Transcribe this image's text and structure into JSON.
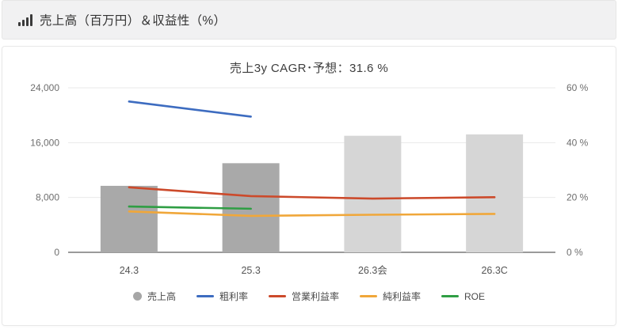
{
  "header": {
    "title": "売上高（百万円）＆収益性（%）",
    "icon": "bar-chart-icon"
  },
  "chart_data": {
    "type": "bar+line combo",
    "title": "売上3y CAGR･予想：31.6 %",
    "categories": [
      "24.3",
      "25.3",
      "26.3会",
      "26.3C"
    ],
    "bar_series": {
      "name": "売上高",
      "values": [
        9700,
        13000,
        17000,
        17200
      ],
      "colors": [
        "#a9a9a9",
        "#a9a9a9",
        "#d6d6d6",
        "#d6d6d6"
      ],
      "legend_marker_color": "#a6a6a6"
    },
    "line_series": [
      {
        "name": "粗利率",
        "color": "#3d6cc0",
        "values": [
          55.0,
          49.5,
          null,
          null
        ]
      },
      {
        "name": "営業利益率",
        "color": "#cc4a2b",
        "values": [
          23.7,
          20.5,
          19.6,
          20.1
        ]
      },
      {
        "name": "純利益率",
        "color": "#f0a73a",
        "values": [
          14.9,
          13.3,
          13.7,
          14.0
        ]
      },
      {
        "name": "ROE",
        "color": "#2f9e44",
        "values": [
          16.7,
          15.9,
          null,
          null
        ]
      }
    ],
    "left_axis": {
      "ticks": [
        "24,000",
        "16,000",
        "8,000",
        "0"
      ],
      "max": 24000,
      "min": 0
    },
    "right_axis": {
      "ticks": [
        "60 %",
        "40 %",
        "20 %",
        "0 %"
      ],
      "max": 60,
      "min": 0
    },
    "grid": true,
    "legend_position": "bottom",
    "colors": {
      "gridline": "#e9e9e9",
      "zero_axis": "#8c8c8c",
      "tick_label": "#6e6e6e",
      "category_label": "#555555"
    }
  }
}
